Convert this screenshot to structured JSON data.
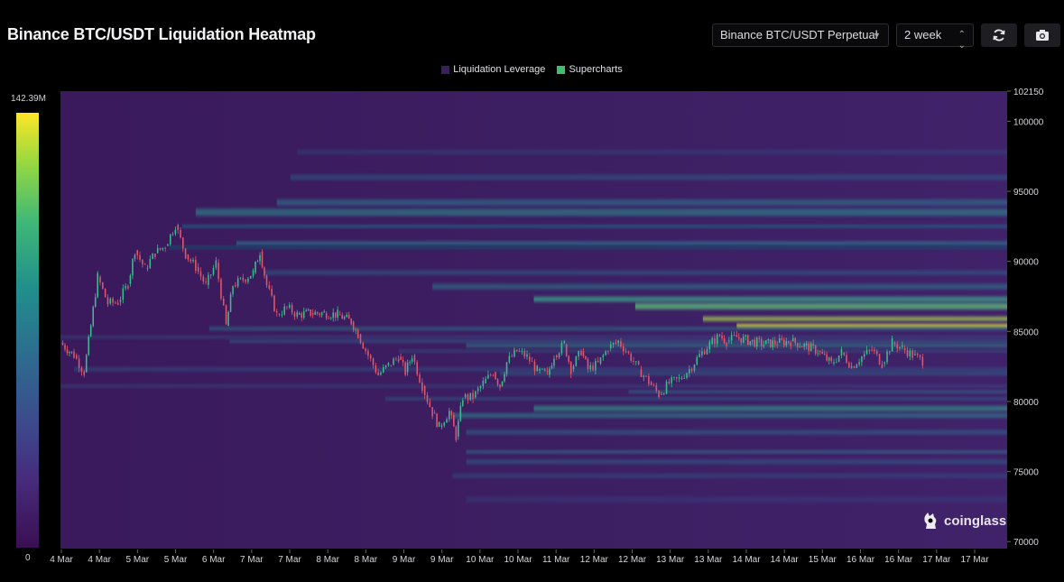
{
  "header": {
    "title": "Binance BTC/USDT Liquidation Heatmap",
    "pair_select": "Binance BTC/USDT Perpetual",
    "range_select": "2 week"
  },
  "legend": [
    {
      "label": "Liquidation Leverage",
      "color": "#3b1f5c"
    },
    {
      "label": "Supercharts",
      "color": "#3fbf6a"
    }
  ],
  "colorbar": {
    "max_label": "142.39M",
    "min_label": "0"
  },
  "watermark": "coinglass",
  "colors": {
    "background": "#000000",
    "heatmap_base": "#3a155d",
    "candle_up": "#3fb98e",
    "candle_down": "#e0566c"
  },
  "chart_data": {
    "type": "heatmap",
    "title": "Binance BTC/USDT Liquidation Heatmap",
    "y_tick_labels": [
      "102150",
      "100000",
      "95000",
      "90000",
      "85000",
      "80000",
      "75000",
      "70000"
    ],
    "ylim": [
      69500,
      102150
    ],
    "x_tick_labels": [
      "4 Mar",
      "4 Mar",
      "5 Mar",
      "5 Mar",
      "6 Mar",
      "7 Mar",
      "7 Mar",
      "8 Mar",
      "8 Mar",
      "9 Mar",
      "9 Mar",
      "10 Mar",
      "10 Mar",
      "11 Mar",
      "12 Mar",
      "12 Mar",
      "13 Mar",
      "13 Mar",
      "14 Mar",
      "14 Mar",
      "15 Mar",
      "16 Mar",
      "16 Mar",
      "17 Mar",
      "17 Mar"
    ],
    "xlim_days": [
      4.0,
      18.0
    ],
    "grid": false,
    "legend_position": "top-center",
    "price_series": [
      [
        4.0,
        84200
      ],
      [
        4.2,
        83300
      ],
      [
        4.35,
        82100
      ],
      [
        4.45,
        85400
      ],
      [
        4.55,
        88900
      ],
      [
        4.7,
        87000
      ],
      [
        4.85,
        87100
      ],
      [
        5.0,
        88400
      ],
      [
        5.1,
        90800
      ],
      [
        5.25,
        89500
      ],
      [
        5.4,
        90600
      ],
      [
        5.55,
        91100
      ],
      [
        5.7,
        92600
      ],
      [
        5.85,
        90500
      ],
      [
        6.0,
        89600
      ],
      [
        6.15,
        88300
      ],
      [
        6.3,
        89900
      ],
      [
        6.45,
        85400
      ],
      [
        6.55,
        88300
      ],
      [
        6.7,
        88700
      ],
      [
        6.85,
        89200
      ],
      [
        6.95,
        90700
      ],
      [
        7.05,
        88300
      ],
      [
        7.2,
        86200
      ],
      [
        7.35,
        86700
      ],
      [
        7.5,
        86200
      ],
      [
        7.7,
        86300
      ],
      [
        7.9,
        86300
      ],
      [
        8.1,
        86200
      ],
      [
        8.3,
        85700
      ],
      [
        8.4,
        84800
      ],
      [
        8.55,
        83300
      ],
      [
        8.7,
        81900
      ],
      [
        8.85,
        82600
      ],
      [
        9.0,
        83200
      ],
      [
        9.1,
        82100
      ],
      [
        9.2,
        83300
      ],
      [
        9.35,
        81100
      ],
      [
        9.5,
        79200
      ],
      [
        9.6,
        78200
      ],
      [
        9.75,
        79300
      ],
      [
        9.85,
        77500
      ],
      [
        9.95,
        80300
      ],
      [
        10.1,
        80300
      ],
      [
        10.25,
        81300
      ],
      [
        10.4,
        82100
      ],
      [
        10.5,
        81100
      ],
      [
        10.6,
        82800
      ],
      [
        10.75,
        83600
      ],
      [
        10.9,
        83200
      ],
      [
        11.05,
        82200
      ],
      [
        11.2,
        81900
      ],
      [
        11.3,
        83300
      ],
      [
        11.45,
        84100
      ],
      [
        11.55,
        82300
      ],
      [
        11.7,
        83600
      ],
      [
        11.8,
        82300
      ],
      [
        11.95,
        82700
      ],
      [
        12.1,
        83800
      ],
      [
        12.25,
        84300
      ],
      [
        12.4,
        83400
      ],
      [
        12.55,
        82300
      ],
      [
        12.7,
        81400
      ],
      [
        12.85,
        80500
      ],
      [
        13.0,
        81300
      ],
      [
        13.15,
        81600
      ],
      [
        13.3,
        82300
      ],
      [
        13.45,
        83300
      ],
      [
        13.6,
        84100
      ],
      [
        13.75,
        84700
      ],
      [
        13.85,
        84300
      ],
      [
        14.0,
        84600
      ],
      [
        14.2,
        84300
      ],
      [
        14.4,
        84100
      ],
      [
        14.6,
        84200
      ],
      [
        14.8,
        84300
      ],
      [
        15.0,
        84000
      ],
      [
        15.2,
        83600
      ],
      [
        15.4,
        82700
      ],
      [
        15.55,
        83500
      ],
      [
        15.7,
        82500
      ],
      [
        15.85,
        83200
      ],
      [
        16.0,
        83700
      ],
      [
        16.15,
        82700
      ],
      [
        16.3,
        84200
      ],
      [
        16.45,
        83800
      ],
      [
        16.6,
        83300
      ],
      [
        16.75,
        82900
      ]
    ]
  }
}
